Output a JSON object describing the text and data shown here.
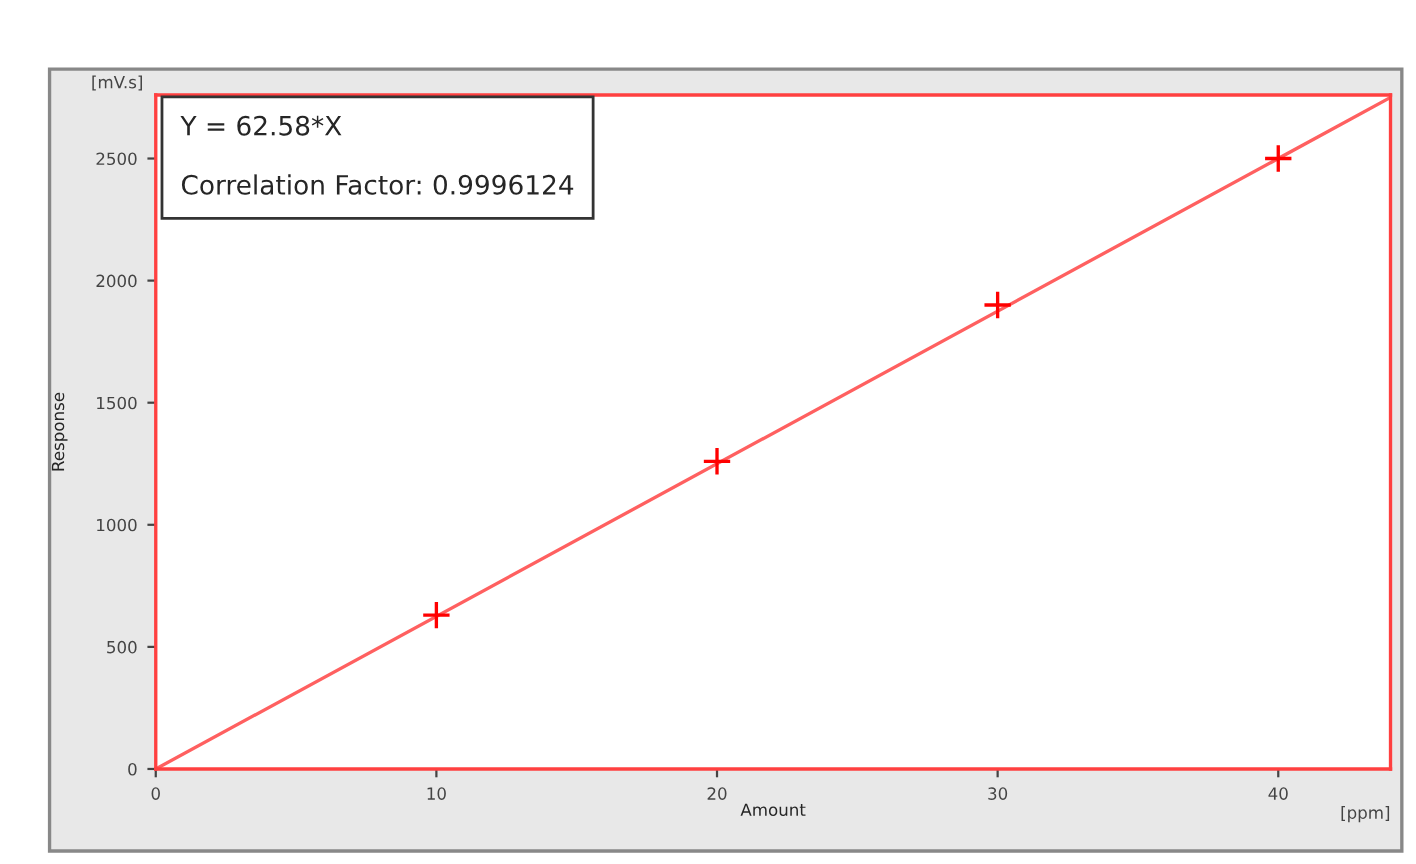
{
  "chart_data": {
    "type": "scatter",
    "xlabel": "Amount",
    "ylabel": "Response",
    "annotations": [
      "Y = 62.58*X",
      "Correlation Factor: 0.9996124",
      "[mV.s]",
      "[ppm]"
    ],
    "series": [
      {
        "color": "#ff0000",
        "x": [
          10,
          20,
          30,
          40
        ],
        "values": [
          630,
          1260,
          1900,
          2500
        ],
        "marker": "cross"
      },
      {
        "type": "line",
        "color": "#ff6060",
        "x": [
          0,
          44
        ],
        "values": [
          0,
          2750
        ],
        "marker": "none",
        "line_style": "solid"
      }
    ],
    "xlim": [
      0,
      44
    ],
    "ylim": [
      0,
      2760
    ],
    "xticks": [
      0,
      10,
      20,
      30,
      40
    ],
    "yticks": [
      0,
      500,
      1000,
      1500,
      2000,
      2500
    ],
    "grid": false,
    "legend": false
  }
}
